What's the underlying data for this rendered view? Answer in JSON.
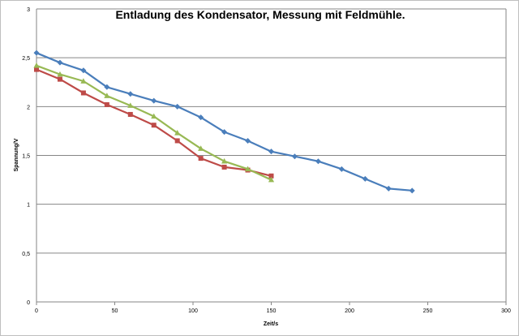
{
  "chart_data": {
    "type": "line",
    "title": "Entladung des Kondensator, Messung mit Feldmühle.",
    "xlabel": "Zeit/s",
    "ylabel": "Spannung/V",
    "xlim": [
      0,
      300
    ],
    "ylim": [
      0,
      3
    ],
    "xticks": [
      0,
      50,
      100,
      150,
      200,
      250,
      300
    ],
    "xtick_labels": [
      "0",
      "50",
      "100",
      "150",
      "200",
      "250",
      "300"
    ],
    "yticks": [
      0,
      0.5,
      1,
      1.5,
      2,
      2.5,
      3
    ],
    "ytick_labels": [
      "0",
      "0,5",
      "1",
      "1,5",
      "2",
      "2,5",
      "3"
    ],
    "grid": "horizontal major gridlines",
    "legend": "none",
    "series": [
      {
        "color": "#4a7ebb",
        "marker": "diamond",
        "x": [
          0,
          15,
          30,
          45,
          60,
          75,
          90,
          105,
          120,
          135,
          150,
          165,
          180,
          195,
          210,
          225,
          240
        ],
        "y": [
          2.55,
          2.45,
          2.37,
          2.2,
          2.13,
          2.06,
          2.0,
          1.89,
          1.74,
          1.65,
          1.54,
          1.49,
          1.44,
          1.36,
          1.26,
          1.16,
          1.14
        ]
      },
      {
        "color": "#be4b48",
        "marker": "square",
        "x": [
          0,
          15,
          30,
          45,
          60,
          75,
          90,
          105,
          120,
          135,
          150
        ],
        "y": [
          2.38,
          2.28,
          2.14,
          2.02,
          1.92,
          1.81,
          1.65,
          1.47,
          1.38,
          1.35,
          1.29
        ]
      },
      {
        "color": "#98b954",
        "marker": "triangle",
        "x": [
          0,
          15,
          30,
          45,
          60,
          75,
          90,
          105,
          120,
          135,
          150
        ],
        "y": [
          2.42,
          2.33,
          2.26,
          2.11,
          2.01,
          1.9,
          1.73,
          1.57,
          1.44,
          1.36,
          1.25
        ]
      }
    ]
  }
}
